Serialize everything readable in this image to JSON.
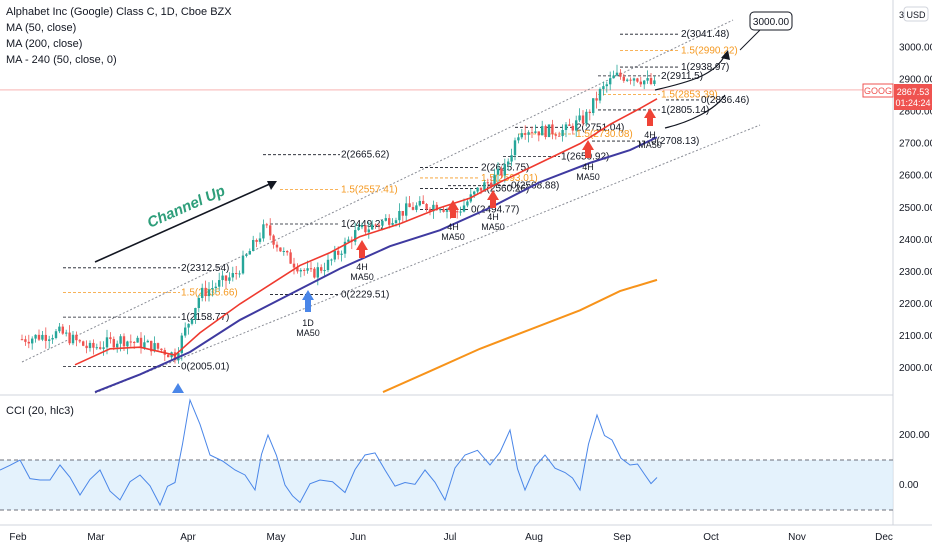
{
  "legend": {
    "symbol": "Alphabet Inc (Google) Class C, 1D, Cboe BZX",
    "ma50": "MA (50, close)",
    "ma200": "MA (200, close)",
    "ma240": "MA - 240 (50, close, 0)",
    "cci": "CCI (20, hlc3)"
  },
  "price_badge": {
    "ticker": "GOOG",
    "price": "2867.53",
    "countdown": "01:24:24"
  },
  "currency": "USD",
  "scale_top": "3",
  "callout": "3000.00",
  "channel_text": "Channel Up",
  "marker_labels": {
    "ma4h": [
      "4H",
      "MA50"
    ],
    "ma1d": [
      "1D",
      "MA50"
    ]
  },
  "colors": {
    "up": "#26a69a",
    "down": "#ef5350",
    "ma50": "#ef3a2f",
    "ma200": "#f7931a",
    "ma240": "#3f3aa0",
    "cci": "#4a86e8",
    "arrow_up": "#ef4336",
    "arrow_blue": "#4a86e8",
    "fib": "#f59a23"
  },
  "chart_data": {
    "type": "candlestick",
    "x_ticks": [
      "Feb",
      "Mar",
      "Apr",
      "May",
      "Jun",
      "Jul",
      "Aug",
      "Sep",
      "Oct",
      "Nov",
      "Dec"
    ],
    "y_ticks": [
      2000,
      2100,
      2200,
      2300,
      2400,
      2500,
      2600,
      2700,
      2800,
      2900,
      3000
    ],
    "y_tick_labels": [
      "2000.00",
      "2100.00",
      "2200.00",
      "2300.00",
      "2400.00",
      "2500.00",
      "2600.00",
      "2700.00",
      "2800.00",
      "2900.00",
      "3000.00"
    ],
    "ylim": [
      1920,
      3150
    ],
    "last_price": 2867.53,
    "cci_ticks": [
      0,
      200
    ],
    "cci_tick_labels": [
      "0.00",
      "200.00"
    ],
    "cci_band": [
      -100,
      100
    ],
    "cci_ylim": [
      -200,
      350
    ],
    "fib_levels": [
      {
        "label": "2(3041.48)",
        "price": 3041.48,
        "fib": false
      },
      {
        "label": "1.5(2990.22)",
        "price": 2990.22,
        "fib": true
      },
      {
        "label": "1(2938.97)",
        "price": 2938.97,
        "fib": false
      },
      {
        "label": "2(2911.5)",
        "price": 2911.5,
        "fib": false
      },
      {
        "label": "1.5(2853.39)",
        "price": 2853.39,
        "fib": true
      },
      {
        "label": "0(2836.46)",
        "price": 2836.46,
        "fib": false
      },
      {
        "label": "1(2805.14)",
        "price": 2805.14,
        "fib": false
      },
      {
        "label": "2(2751.04)",
        "price": 2751.04,
        "fib": false
      },
      {
        "label": "1.5(2730.08)",
        "price": 2730.08,
        "fib": true
      },
      {
        "label": "0(2708.13)",
        "price": 2708.13,
        "fib": false
      },
      {
        "label": "2(2665.62)",
        "price": 2665.62,
        "fib": false
      },
      {
        "label": "1(2659.92)",
        "price": 2659.92,
        "fib": false
      },
      {
        "label": "2(2625.75)",
        "price": 2625.75,
        "fib": false
      },
      {
        "label": "1.5(2593.01)",
        "price": 2593.01,
        "fib": true
      },
      {
        "label": "0(2568.88)",
        "price": 2568.88,
        "fib": false
      },
      {
        "label": "1(2560.26)",
        "price": 2560.26,
        "fib": false
      },
      {
        "label": "1.5(2557.41)",
        "price": 2557.41,
        "fib": true
      },
      {
        "label": "0(2494.77)",
        "price": 2494.77,
        "fib": false
      },
      {
        "label": "1(2449.2)",
        "price": 2449.2,
        "fib": false
      },
      {
        "label": "2(2312.54)",
        "price": 2312.54,
        "fib": false
      },
      {
        "label": "1.5(2235.66)",
        "price": 2235.66,
        "fib": true
      },
      {
        "label": "0(2229.51)",
        "price": 2229.51,
        "fib": false
      },
      {
        "label": "1(2158.77)",
        "price": 2158.77,
        "fib": false
      },
      {
        "label": "0(2005.01)",
        "price": 2005.01,
        "fib": false
      }
    ]
  }
}
